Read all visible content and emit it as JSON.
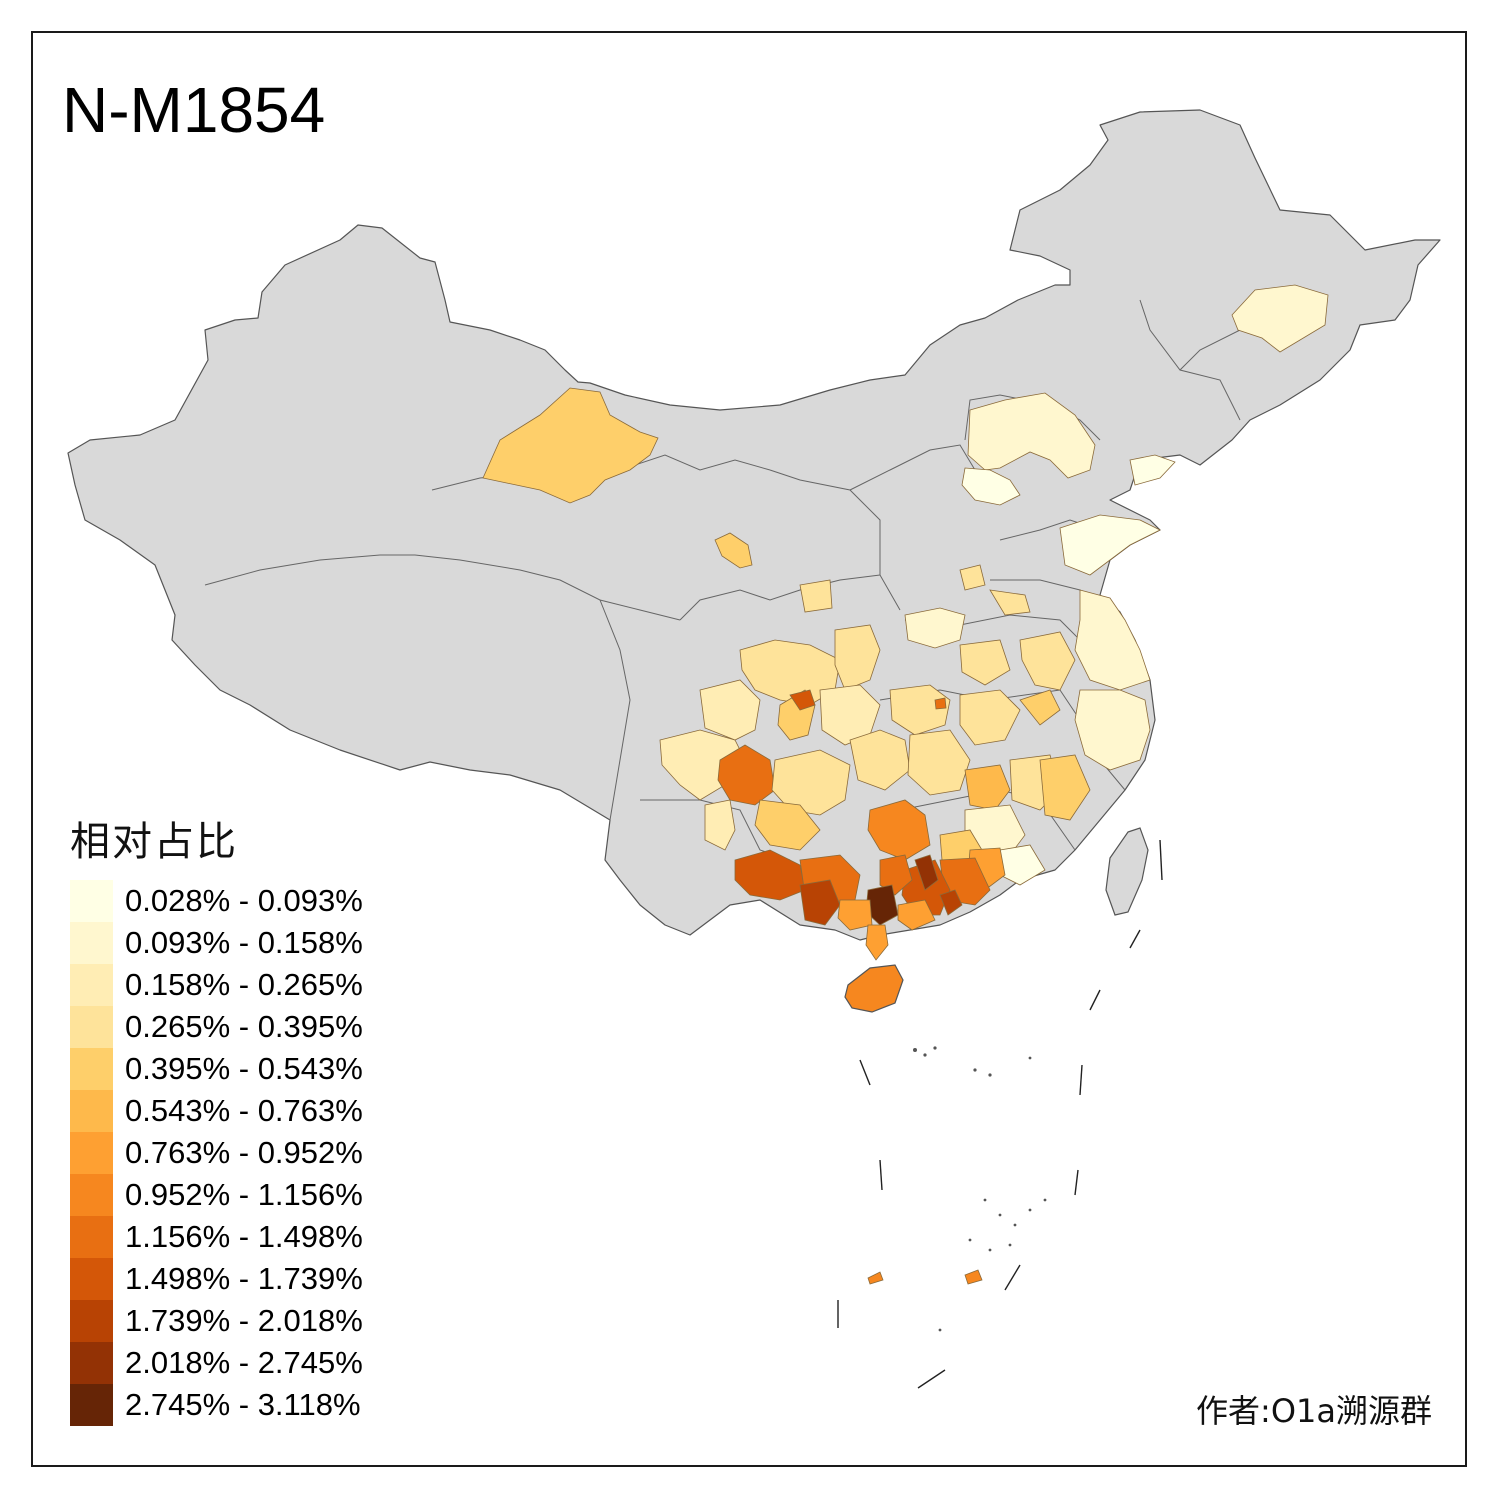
{
  "title": "N-M1854",
  "legend": {
    "title": "相对占比",
    "items": [
      {
        "label": "0.028% - 0.093%",
        "color": "#ffffe5"
      },
      {
        "label": "0.093% - 0.158%",
        "color": "#fff7cf"
      },
      {
        "label": "0.158% - 0.265%",
        "color": "#ffedb4"
      },
      {
        "label": "0.265% - 0.395%",
        "color": "#fee39a"
      },
      {
        "label": "0.395% - 0.543%",
        "color": "#fecf6a"
      },
      {
        "label": "0.543% - 0.763%",
        "color": "#feb94b"
      },
      {
        "label": "0.763% - 0.952%",
        "color": "#fea032"
      },
      {
        "label": "0.952% - 1.156%",
        "color": "#f6871f"
      },
      {
        "label": "1.156% - 1.498%",
        "color": "#e86f12"
      },
      {
        "label": "1.498% - 1.739%",
        "color": "#d45708"
      },
      {
        "label": "1.739% - 2.018%",
        "color": "#b84304"
      },
      {
        "label": "2.018% - 2.745%",
        "color": "#933205"
      },
      {
        "label": "2.745% - 3.118%",
        "color": "#662506"
      }
    ]
  },
  "author": "作者:O1a溯源群",
  "colors": {
    "no_data": "#d9d9d9",
    "border": "#555555",
    "frame": "#1a1a1a"
  }
}
